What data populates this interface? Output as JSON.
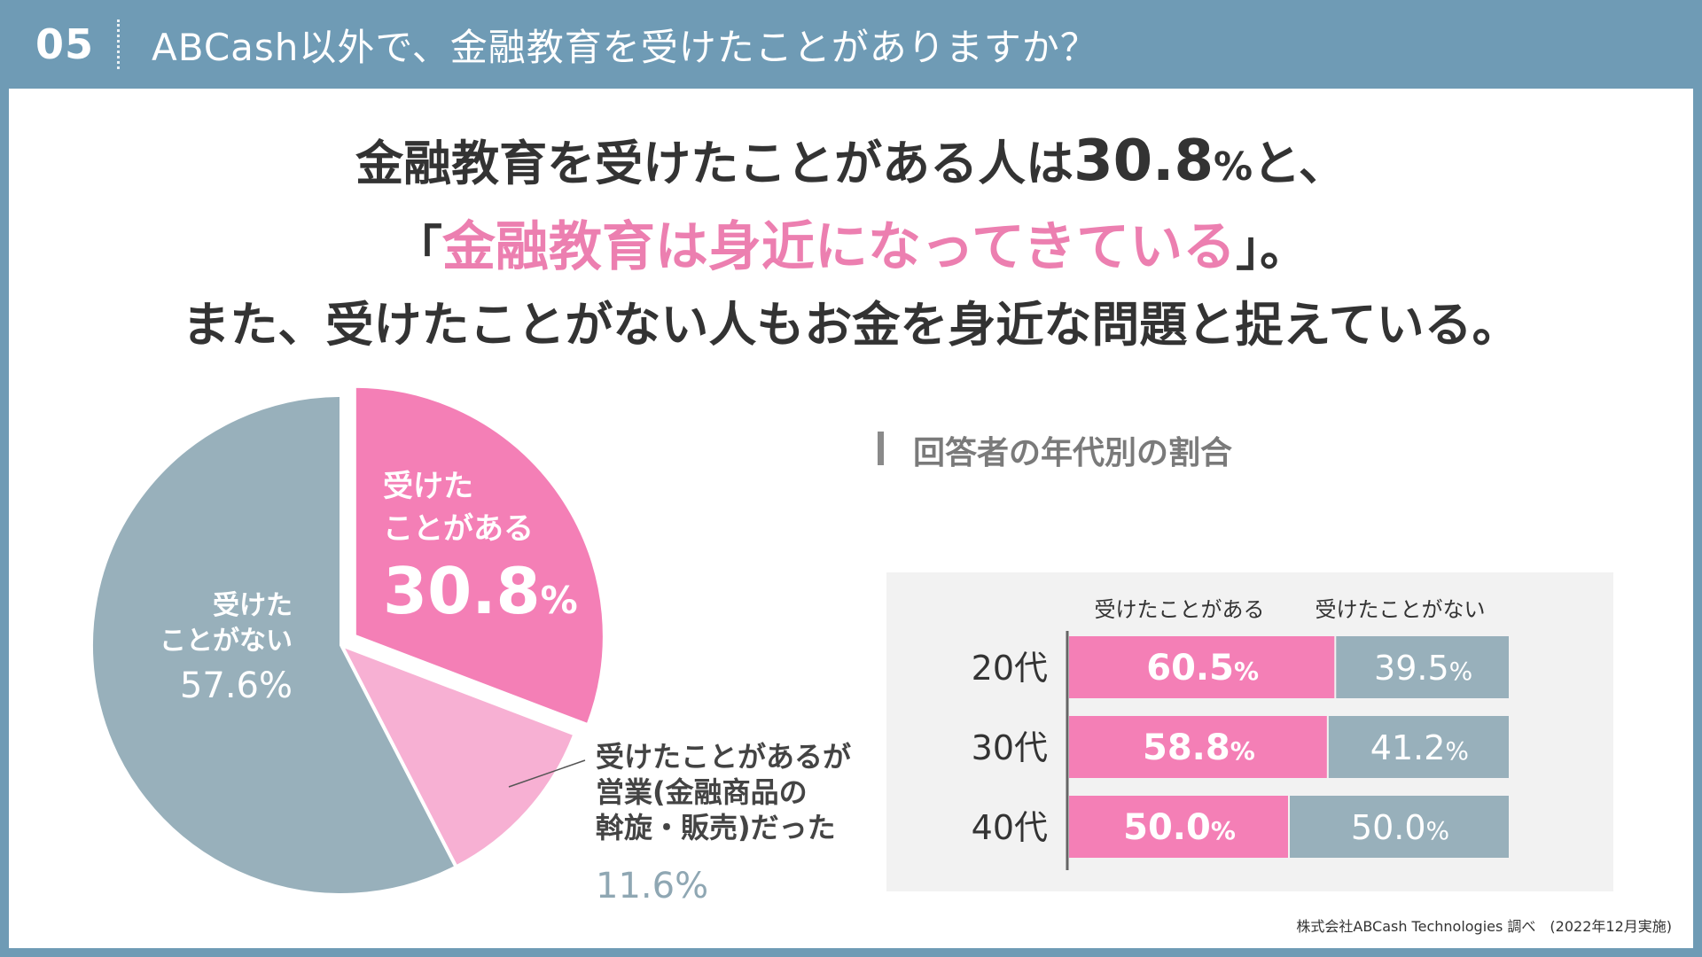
{
  "header": {
    "number": "05",
    "title": "ABCash以外で、金融教育を受けたことがありますか？"
  },
  "headline": {
    "line1_pre": "金融教育を受けたことがある人は",
    "line1_num": "30.8",
    "line1_pct": "%",
    "line1_post": "と、",
    "line2_open": "「",
    "line2_highlight": "金融教育は身近になってきている",
    "line2_close": "」。",
    "line3": "また、受けたことがない人もお金を身近な問題と捉えている。"
  },
  "source": "株式会社ABCash Technologies 調べ　(2022年12月実施)",
  "age_title": "回答者の年代別の割合",
  "colors": {
    "pink": "#f47fb6",
    "light_pink": "#f7b0d3",
    "gray": "#98b0bb",
    "panel_bg": "#f2f2f2",
    "header_bg": "#6f9bb5"
  },
  "chart_data": [
    {
      "type": "pie",
      "title": "",
      "slices": [
        {
          "label_lines": [
            "受けた",
            "ことがある"
          ],
          "value": 30.8,
          "value_text": "30.8",
          "pct": "%",
          "color": "#f47fb6",
          "exploded": true
        },
        {
          "label_lines": [
            "受けたことがあるが",
            "営業(金融商品の",
            "斡旋・販売)だった"
          ],
          "value": 11.6,
          "value_text": "11.6%",
          "color": "#f7b0d3",
          "exploded": false
        },
        {
          "label_lines": [
            "受けた",
            "ことがない"
          ],
          "value": 57.6,
          "value_text": "57.6%",
          "color": "#98b0bb",
          "exploded": false
        }
      ]
    },
    {
      "type": "bar",
      "orientation": "horizontal",
      "stacked": true,
      "percent_stacked": true,
      "title": "回答者の年代別の割合",
      "categories": [
        "20代",
        "30代",
        "40代"
      ],
      "series": [
        {
          "name": "受けたことがある",
          "values": [
            60.5,
            58.8,
            50.0
          ],
          "labels": [
            "60.5",
            "58.8",
            "50.0"
          ],
          "color": "#f47fb6"
        },
        {
          "name": "受けたことがない",
          "values": [
            39.5,
            41.2,
            50.0
          ],
          "labels": [
            "39.5",
            "41.2",
            "50.0"
          ],
          "color": "#98b0bb"
        }
      ],
      "pct_suffix": "%",
      "xlim": [
        0,
        100
      ]
    }
  ]
}
